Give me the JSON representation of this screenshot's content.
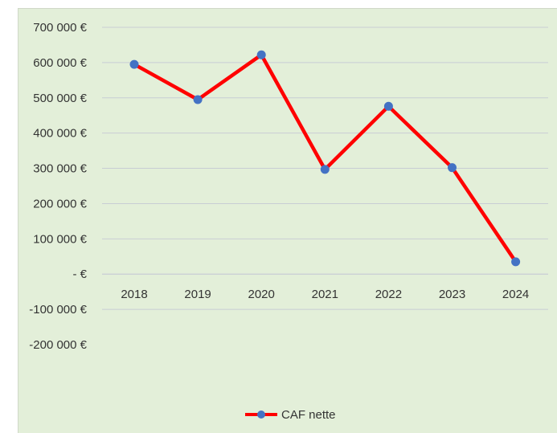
{
  "chart_data": {
    "type": "line",
    "categories": [
      "2018",
      "2019",
      "2020",
      "2021",
      "2022",
      "2023",
      "2024"
    ],
    "series": [
      {
        "name": "CAF nette",
        "values": [
          595000,
          495000,
          622000,
          297000,
          476000,
          302000,
          35000
        ],
        "line_color": "#ff0000",
        "marker_color": "#4472c4"
      }
    ],
    "y_ticks": [
      700000,
      600000,
      500000,
      400000,
      300000,
      200000,
      100000,
      0,
      -100000,
      -200000
    ],
    "y_tick_labels": [
      "700 000 €",
      "600 000 €",
      "500 000 €",
      "400 000 €",
      "300 000 €",
      "200 000 €",
      "100 000 €",
      "- €",
      "-100 000 €",
      "-200 000 €"
    ],
    "ylim": [
      -200000,
      700000
    ],
    "grid": true,
    "legend_position": "bottom",
    "background_color": "#e3efd9",
    "gridline_color": "#c8cdd4"
  }
}
